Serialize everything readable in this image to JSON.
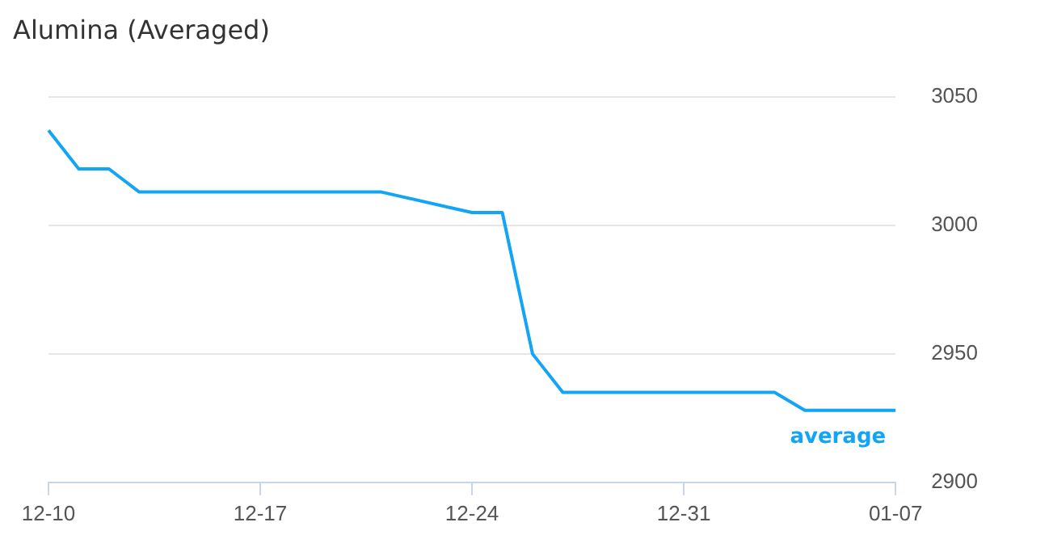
{
  "chart_data": {
    "type": "line",
    "title": "Alumina (Averaged)",
    "categories": [
      "12-10",
      null,
      null,
      null,
      null,
      null,
      null,
      "12-17",
      null,
      null,
      null,
      null,
      null,
      null,
      "12-24",
      null,
      null,
      null,
      null,
      null,
      null,
      "12-31",
      null,
      null,
      null,
      null,
      null,
      null,
      "01-07"
    ],
    "series": [
      {
        "name": "average",
        "color": "#12a4f5",
        "values": [
          3037,
          3022,
          3022,
          3013,
          null,
          null,
          null,
          null,
          null,
          null,
          null,
          3013,
          null,
          null,
          3005,
          3005,
          2950,
          2935,
          null,
          null,
          null,
          null,
          null,
          null,
          2935,
          2928,
          null,
          null,
          2928
        ]
      }
    ],
    "ylim": [
      2900,
      3050
    ],
    "yticks": [
      2900,
      2950,
      3000,
      3050
    ],
    "grid": "y",
    "legend": "bottom right",
    "marker": "none",
    "line_style": "solid"
  }
}
